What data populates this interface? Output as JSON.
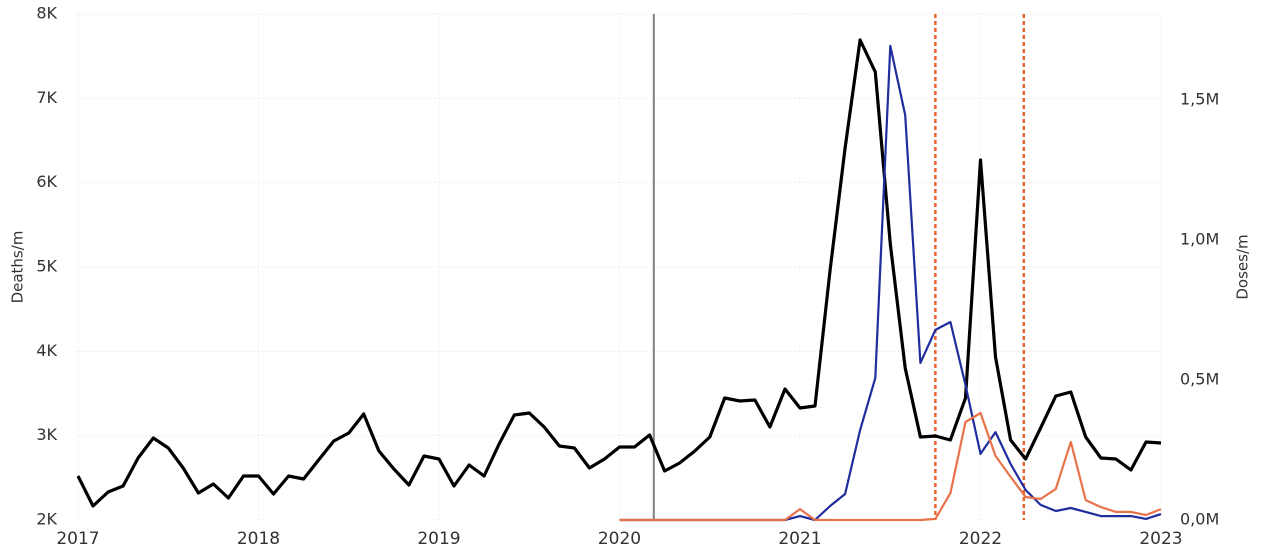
{
  "chart_data": {
    "type": "line",
    "x": [
      2017,
      2017.083,
      2017.167,
      2017.25,
      2017.333,
      2017.417,
      2017.5,
      2017.583,
      2017.667,
      2017.75,
      2017.833,
      2017.917,
      2018,
      2018.083,
      2018.167,
      2018.25,
      2018.333,
      2018.417,
      2018.5,
      2018.583,
      2018.667,
      2018.75,
      2018.833,
      2018.917,
      2019,
      2019.083,
      2019.167,
      2019.25,
      2019.333,
      2019.417,
      2019.5,
      2019.583,
      2019.667,
      2019.75,
      2019.833,
      2019.917,
      2020,
      2020.083,
      2020.167,
      2020.25,
      2020.333,
      2020.417,
      2020.5,
      2020.583,
      2020.667,
      2020.75,
      2020.833,
      2020.917,
      2021,
      2021.083,
      2021.167,
      2021.25,
      2021.333,
      2021.417,
      2021.5,
      2021.583,
      2021.667,
      2021.75,
      2021.833,
      2021.917,
      2022,
      2022.083,
      2022.167,
      2022.25,
      2022.333,
      2022.417,
      2022.5,
      2022.583,
      2022.667,
      2022.75,
      2022.833,
      2022.917,
      2023
    ],
    "series": [
      {
        "color": "#000000",
        "axis": "y",
        "values": [
          2522,
          2166,
          2332,
          2403,
          2735,
          2972,
          2854,
          2617,
          2320,
          2427,
          2261,
          2522,
          2522,
          2308,
          2522,
          2486,
          2711,
          2937,
          3032,
          3257,
          2818,
          2605,
          2415,
          2759,
          2723,
          2403,
          2652,
          2522,
          2901,
          3245,
          3269,
          3103,
          2878,
          2854,
          2617,
          2723,
          2866,
          2866,
          3008,
          2581,
          2676,
          2818,
          2984,
          3447,
          3411,
          3423,
          3103,
          3553,
          3328,
          3352,
          4965,
          6411,
          7692,
          7312,
          5273,
          3802,
          2984,
          2996,
          2949,
          3447,
          6269,
          3933,
          2949,
          2723,
          3091,
          3470,
          3518,
          2984,
          2735,
          2723,
          2593,
          2925,
          2913
        ]
      },
      {
        "color": "#1f2d9e",
        "axis": "y2",
        "values": [
          null,
          null,
          null,
          null,
          null,
          null,
          null,
          null,
          null,
          null,
          null,
          null,
          null,
          null,
          null,
          null,
          null,
          null,
          null,
          null,
          null,
          null,
          null,
          null,
          null,
          null,
          null,
          null,
          null,
          null,
          null,
          null,
          null,
          null,
          null,
          null,
          0,
          0,
          0,
          0,
          0,
          0,
          0,
          0,
          0,
          0,
          0,
          0,
          14000,
          0,
          50000,
          93000,
          321000,
          507000,
          1693000,
          1446000,
          561000,
          679000,
          707000,
          482000,
          236000,
          314000,
          200000,
          107000,
          54000,
          32000,
          43000,
          29000,
          14000,
          14000,
          14000,
          4000,
          21000
        ]
      },
      {
        "color": "#e8734a",
        "axis": "y2",
        "values": [
          null,
          null,
          null,
          null,
          null,
          null,
          null,
          null,
          null,
          null,
          null,
          null,
          null,
          null,
          null,
          null,
          null,
          null,
          null,
          null,
          null,
          null,
          null,
          null,
          null,
          null,
          null,
          null,
          null,
          null,
          null,
          null,
          null,
          null,
          null,
          null,
          0,
          0,
          0,
          0,
          0,
          0,
          0,
          0,
          0,
          0,
          0,
          0,
          39000,
          0,
          0,
          0,
          0,
          0,
          0,
          0,
          0,
          4000,
          96000,
          350000,
          382000,
          229000,
          154000,
          82000,
          75000,
          111000,
          279000,
          71000,
          46000,
          29000,
          29000,
          18000,
          39000
        ]
      }
    ],
    "xlim": [
      2017,
      2023
    ],
    "xticks": [
      2017,
      2018,
      2019,
      2020,
      2021,
      2022,
      2023
    ],
    "ylim": [
      2000,
      8000
    ],
    "yticks": [
      {
        "value": 2000,
        "label": "2K"
      },
      {
        "value": 3000,
        "label": "3K"
      },
      {
        "value": 4000,
        "label": "4K"
      },
      {
        "value": 5000,
        "label": "5K"
      },
      {
        "value": 6000,
        "label": "6K"
      },
      {
        "value": 7000,
        "label": "7K"
      },
      {
        "value": 8000,
        "label": "8K"
      }
    ],
    "y2lim": [
      0,
      1807000
    ],
    "y2ticks": [
      {
        "value": 0,
        "label": "0,0M"
      },
      {
        "value": 500000,
        "label": "0,5M"
      },
      {
        "value": 1000000,
        "label": "1,0M"
      },
      {
        "value": 1500000,
        "label": "1,5M"
      }
    ],
    "ylabel": "Deaths/m",
    "y2label": "Doses/m",
    "vlines": [
      {
        "x": 2020.19,
        "color": "#808080",
        "dashed": false
      },
      {
        "x": 2021.75,
        "color": "#e8642e",
        "dashed": true
      },
      {
        "x": 2022.24,
        "color": "#e8642e",
        "dashed": true
      }
    ],
    "grid": true
  }
}
